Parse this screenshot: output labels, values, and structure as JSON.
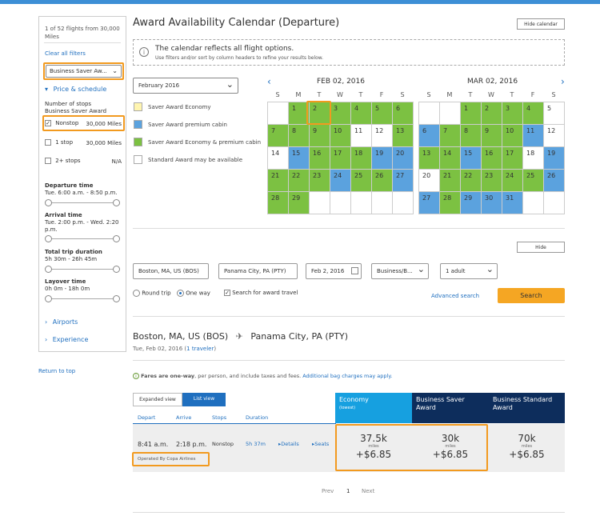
{
  "sidebar": {
    "results_summary": "1 of 52 flights from 30,000 Miles",
    "clear_filters": "Clear all filters",
    "fare_select": "Business Saver Aw...",
    "price_schedule": "Price & schedule",
    "stops_title": "Number of stops",
    "stops_subtitle": "Business Saver Award",
    "stops": [
      {
        "label": "Nonstop",
        "value": "30,000 Miles",
        "checked": true
      },
      {
        "label": "1 stop",
        "value": "30,000 Miles",
        "checked": false
      },
      {
        "label": "2+ stops",
        "value": "N/A",
        "checked": false
      }
    ],
    "departure_time_label": "Departure time",
    "departure_time_value": "Tue. 6:00 a.m. - 8:50 p.m.",
    "arrival_time_label": "Arrival time",
    "arrival_time_value": "Tue. 2:00 p.m. - Wed. 2:20 p.m.",
    "trip_duration_label": "Total trip duration",
    "trip_duration_value": "5h 30m - 26h 45m",
    "layover_label": "Layover time",
    "layover_value": "0h 0m - 18h 0m",
    "airports": "Airports",
    "experience": "Experience",
    "return_top": "Return to top"
  },
  "calendar": {
    "title": "Award Availability Calendar (Departure)",
    "hide_calendar": "Hide calendar",
    "info_bold": "The calendar reflects all flight options.",
    "info_sub": "Use filters and/or sort by column headers to refine your results below.",
    "month_select": "February 2016",
    "legend": [
      {
        "label": "Saver Award Economy",
        "color": "#fff5b0"
      },
      {
        "label": "Saver Award premium cabin",
        "color": "#5ba2de"
      },
      {
        "label": "Saver Award Economy & premium cabin",
        "color": "#7cc142"
      },
      {
        "label": "Standard Award may be available",
        "color": "#ffffff"
      }
    ],
    "dow": [
      "S",
      "M",
      "T",
      "W",
      "T",
      "F",
      "S"
    ],
    "months": [
      {
        "title": "FEB 02, 2016",
        "cells": [
          {
            "d": "",
            "c": "w"
          },
          {
            "d": "1",
            "c": "g"
          },
          {
            "d": "2",
            "c": "g"
          },
          {
            "d": "3",
            "c": "g"
          },
          {
            "d": "4",
            "c": "g"
          },
          {
            "d": "5",
            "c": "g"
          },
          {
            "d": "6",
            "c": "g"
          },
          {
            "d": "7",
            "c": "g"
          },
          {
            "d": "8",
            "c": "g"
          },
          {
            "d": "9",
            "c": "g"
          },
          {
            "d": "10",
            "c": "g"
          },
          {
            "d": "11",
            "c": "w"
          },
          {
            "d": "12",
            "c": "w"
          },
          {
            "d": "13",
            "c": "g"
          },
          {
            "d": "14",
            "c": "w"
          },
          {
            "d": "15",
            "c": "b"
          },
          {
            "d": "16",
            "c": "g"
          },
          {
            "d": "17",
            "c": "g"
          },
          {
            "d": "18",
            "c": "g"
          },
          {
            "d": "19",
            "c": "b"
          },
          {
            "d": "20",
            "c": "b"
          },
          {
            "d": "21",
            "c": "g"
          },
          {
            "d": "22",
            "c": "g"
          },
          {
            "d": "23",
            "c": "g"
          },
          {
            "d": "24",
            "c": "b"
          },
          {
            "d": "25",
            "c": "g"
          },
          {
            "d": "26",
            "c": "g"
          },
          {
            "d": "27",
            "c": "b"
          },
          {
            "d": "28",
            "c": "g"
          },
          {
            "d": "29",
            "c": "g"
          },
          {
            "d": "",
            "c": "w"
          },
          {
            "d": "",
            "c": "w"
          },
          {
            "d": "",
            "c": "w"
          },
          {
            "d": "",
            "c": "w"
          },
          {
            "d": "",
            "c": "w"
          }
        ]
      },
      {
        "title": "MAR 02, 2016",
        "cells": [
          {
            "d": "",
            "c": "w"
          },
          {
            "d": "",
            "c": "w"
          },
          {
            "d": "1",
            "c": "g"
          },
          {
            "d": "2",
            "c": "g"
          },
          {
            "d": "3",
            "c": "g"
          },
          {
            "d": "4",
            "c": "g"
          },
          {
            "d": "5",
            "c": "w"
          },
          {
            "d": "6",
            "c": "b"
          },
          {
            "d": "7",
            "c": "g"
          },
          {
            "d": "8",
            "c": "g"
          },
          {
            "d": "9",
            "c": "g"
          },
          {
            "d": "10",
            "c": "g"
          },
          {
            "d": "11",
            "c": "b"
          },
          {
            "d": "12",
            "c": "w"
          },
          {
            "d": "13",
            "c": "g"
          },
          {
            "d": "14",
            "c": "g"
          },
          {
            "d": "15",
            "c": "b"
          },
          {
            "d": "16",
            "c": "g"
          },
          {
            "d": "17",
            "c": "g"
          },
          {
            "d": "18",
            "c": "w"
          },
          {
            "d": "19",
            "c": "b"
          },
          {
            "d": "20",
            "c": "w"
          },
          {
            "d": "21",
            "c": "g"
          },
          {
            "d": "22",
            "c": "g"
          },
          {
            "d": "23",
            "c": "g"
          },
          {
            "d": "24",
            "c": "g"
          },
          {
            "d": "25",
            "c": "g"
          },
          {
            "d": "26",
            "c": "b"
          },
          {
            "d": "27",
            "c": "b"
          },
          {
            "d": "28",
            "c": "g"
          },
          {
            "d": "29",
            "c": "b"
          },
          {
            "d": "30",
            "c": "b"
          },
          {
            "d": "31",
            "c": "b"
          },
          {
            "d": "",
            "c": "w"
          },
          {
            "d": "",
            "c": "w"
          }
        ]
      }
    ]
  },
  "search": {
    "hide": "Hide",
    "from": "Boston, MA, US (BOS)",
    "to": "Panama City, PA (PTY)",
    "date": "Feb 2, 2016",
    "cabin": "Business/B...",
    "travelers": "1 adult",
    "round_trip": "Round trip",
    "one_way": "One way",
    "award_travel": "Search for award travel",
    "advanced": "Advanced search",
    "search_button": "Search"
  },
  "results": {
    "route_from": "Boston, MA, US (BOS)",
    "route_to": "Panama City, PA (PTY)",
    "date_line": "Tue, Feb 02, 2016 (",
    "travelers_link": "1 traveler",
    "date_line_end": ")",
    "fares_bold": "Fares are one-way",
    "fares_text": ", per person, and include taxes and fees.",
    "bag_link": "Additional bag charges may apply.",
    "view_expanded": "Expanded view",
    "view_list": "List view",
    "col_depart": "Depart",
    "col_arrive": "Arrive",
    "col_stops": "Stops",
    "col_duration": "Duration",
    "col_economy": "Economy",
    "col_economy_sub": "(lowest)",
    "col_saver": "Business Saver Award",
    "col_standard": "Business Standard Award",
    "flight": {
      "depart": "8:41 a.m.",
      "arrive": "2:18 p.m.",
      "stops": "Nonstop",
      "duration": "5h 37m",
      "details": "Details",
      "seats": "Seats",
      "operated": "Operated By Copa Airlines",
      "prices": [
        {
          "miles": "37.5k",
          "unit": "miles",
          "tax": "+$6.85"
        },
        {
          "miles": "30k",
          "unit": "miles",
          "tax": "+$6.85"
        },
        {
          "miles": "70k",
          "unit": "miles",
          "tax": "+$6.85"
        }
      ]
    },
    "pager": {
      "prev": "Prev",
      "page": "1",
      "next": "Next"
    }
  }
}
